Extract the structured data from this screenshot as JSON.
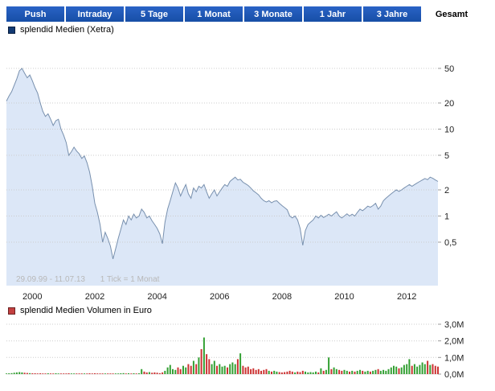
{
  "tabs": [
    {
      "label": "Push",
      "active": false
    },
    {
      "label": "Intraday",
      "active": false
    },
    {
      "label": "5 Tage",
      "active": false
    },
    {
      "label": "1 Monat",
      "active": false
    },
    {
      "label": "3 Monate",
      "active": false
    },
    {
      "label": "1 Jahr",
      "active": false
    },
    {
      "label": "3 Jahre",
      "active": false
    },
    {
      "label": "Gesamt",
      "active": true
    }
  ],
  "price_legend": {
    "label": "splendid Medien (Xetra)"
  },
  "volume_legend": {
    "label": "splendid Medien Volumen in Euro"
  },
  "watermark": {
    "period": "29.09.99 - 11.07.13",
    "tick": "1 Tick = 1 Monat"
  },
  "colors": {
    "tab_bg": "#2a63c6",
    "tab_bg2": "#174ea6",
    "tab_text": "#ffffff",
    "tab_active_bg": "#ffffff",
    "tab_active_text": "#000000",
    "price_square": "#123a73",
    "volume_square": "#c34040",
    "area_fill": "#dce7f7",
    "area_line": "#7890ae",
    "volume_up": "#33a033",
    "volume_down": "#cc3333",
    "grid": "#cccccc",
    "axis_text": "#222222",
    "watermark": "#b8b8b8"
  },
  "chart_data": [
    {
      "type": "area",
      "title": "splendid Medien (Xetra)",
      "period_start": "29.09.99",
      "period_end": "11.07.13",
      "tick_unit": "1 Tick = 1 Monat",
      "start_year": 1999,
      "start_month": 9,
      "y_scale": "log",
      "ylim_approx": [
        0.16,
        95
      ],
      "y_ticks": [
        50,
        20,
        10,
        5,
        2,
        1,
        0.5
      ],
      "y_tick_labels": [
        "50",
        "20",
        "10",
        "5",
        "2",
        "1",
        "0,5"
      ],
      "x_tick_labels": [
        "2000",
        "2002",
        "2004",
        "2006",
        "2008",
        "2010",
        "2012"
      ],
      "values": [
        21,
        24,
        27,
        32,
        38,
        47,
        50,
        44,
        39,
        42,
        36,
        30,
        26,
        20,
        16,
        14,
        15,
        13,
        11,
        12.5,
        13,
        10,
        8.5,
        7,
        5,
        5.5,
        6.2,
        5.6,
        5.2,
        4.6,
        4.9,
        4.1,
        3.2,
        2.2,
        1.4,
        1.1,
        0.8,
        0.5,
        0.65,
        0.55,
        0.45,
        0.32,
        0.42,
        0.55,
        0.7,
        0.9,
        0.8,
        1.0,
        0.9,
        1.05,
        0.95,
        1.0,
        1.2,
        1.1,
        0.95,
        1.0,
        0.88,
        0.8,
        0.72,
        0.62,
        0.48,
        0.85,
        1.2,
        1.5,
        1.9,
        2.4,
        2.1,
        1.7,
        2.0,
        2.3,
        1.8,
        1.6,
        2.1,
        1.9,
        2.2,
        2.1,
        2.3,
        1.9,
        1.6,
        1.8,
        2.0,
        1.7,
        1.9,
        2.1,
        2.3,
        2.2,
        2.5,
        2.65,
        2.8,
        2.6,
        2.65,
        2.45,
        2.35,
        2.25,
        2.1,
        1.95,
        1.85,
        1.75,
        1.6,
        1.5,
        1.45,
        1.5,
        1.42,
        1.48,
        1.5,
        1.4,
        1.32,
        1.25,
        1.18,
        1.0,
        0.95,
        1.0,
        0.9,
        0.72,
        0.46,
        0.68,
        0.8,
        0.85,
        0.9,
        1.0,
        0.95,
        1.02,
        0.96,
        1.0,
        1.05,
        1.0,
        1.06,
        1.12,
        1.0,
        0.95,
        1.0,
        1.06,
        1.0,
        1.05,
        1.0,
        1.1,
        1.2,
        1.15,
        1.22,
        1.3,
        1.26,
        1.32,
        1.4,
        1.2,
        1.3,
        1.5,
        1.6,
        1.7,
        1.8,
        1.9,
        2.0,
        1.92,
        2.0,
        2.1,
        2.2,
        2.3,
        2.2,
        2.3,
        2.4,
        2.5,
        2.6,
        2.7,
        2.62,
        2.8,
        2.72,
        2.6,
        2.5
      ]
    },
    {
      "type": "bar",
      "title": "splendid Medien Volumen in Euro",
      "unit": "millions of EUR",
      "bar_color_rule": "green if month up vs previous, red if down",
      "y_ticks": [
        3,
        2,
        1,
        0
      ],
      "y_tick_labels": [
        "3,0M",
        "2,0M",
        "1,0M",
        "0,0M"
      ],
      "values": [
        0.04,
        0.05,
        0.06,
        0.08,
        0.1,
        0.12,
        0.1,
        0.08,
        0.07,
        0.06,
        0.05,
        0.05,
        0.04,
        0.05,
        0.04,
        0.04,
        0.05,
        0.04,
        0.04,
        0.05,
        0.04,
        0.04,
        0.03,
        0.04,
        0.05,
        0.03,
        0.04,
        0.03,
        0.04,
        0.03,
        0.03,
        0.04,
        0.05,
        0.04,
        0.05,
        0.04,
        0.03,
        0.04,
        0.03,
        0.03,
        0.04,
        0.03,
        0.03,
        0.04,
        0.05,
        0.06,
        0.04,
        0.05,
        0.04,
        0.05,
        0.04,
        0.05,
        0.3,
        0.15,
        0.1,
        0.12,
        0.08,
        0.1,
        0.08,
        0.06,
        0.1,
        0.2,
        0.4,
        0.55,
        0.3,
        0.25,
        0.4,
        0.3,
        0.5,
        0.4,
        0.6,
        0.5,
        0.8,
        0.6,
        1.0,
        1.5,
        2.2,
        1.2,
        0.9,
        0.6,
        0.8,
        0.5,
        0.6,
        0.45,
        0.5,
        0.4,
        0.6,
        0.7,
        0.6,
        0.9,
        1.25,
        0.5,
        0.4,
        0.45,
        0.3,
        0.35,
        0.25,
        0.3,
        0.2,
        0.25,
        0.3,
        0.2,
        0.15,
        0.2,
        0.15,
        0.12,
        0.1,
        0.12,
        0.15,
        0.2,
        0.15,
        0.1,
        0.15,
        0.12,
        0.2,
        0.15,
        0.1,
        0.12,
        0.1,
        0.15,
        0.1,
        0.35,
        0.2,
        0.25,
        1.0,
        0.3,
        0.4,
        0.3,
        0.25,
        0.2,
        0.25,
        0.2,
        0.15,
        0.2,
        0.15,
        0.2,
        0.25,
        0.2,
        0.15,
        0.2,
        0.15,
        0.2,
        0.25,
        0.3,
        0.2,
        0.25,
        0.2,
        0.3,
        0.4,
        0.5,
        0.45,
        0.35,
        0.4,
        0.55,
        0.6,
        0.9,
        0.5,
        0.6,
        0.45,
        0.55,
        0.7,
        0.6,
        0.8,
        0.55,
        0.6,
        0.5,
        0.45
      ]
    }
  ]
}
